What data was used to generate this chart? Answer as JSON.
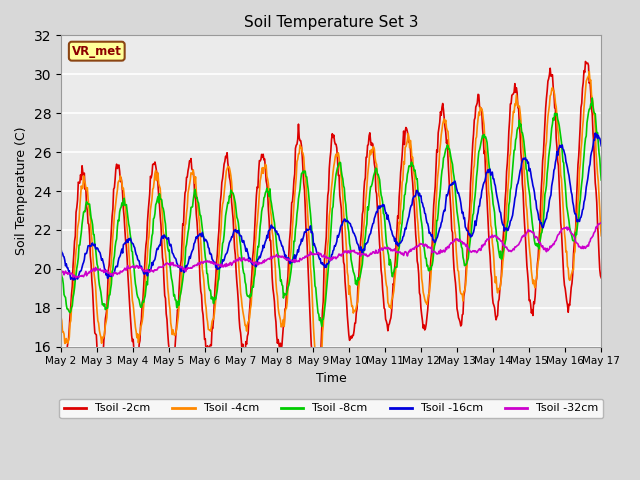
{
  "title": "Soil Temperature Set 3",
  "xlabel": "Time",
  "ylabel": "Soil Temperature (C)",
  "ylim": [
    16,
    32
  ],
  "yticks": [
    16,
    18,
    20,
    22,
    24,
    26,
    28,
    30,
    32
  ],
  "background_color": "#d8d8d8",
  "plot_bg_color": "#ebebeb",
  "grid_color": "#ffffff",
  "label_box_text": "VR_met",
  "label_box_facecolor": "#ffff99",
  "label_box_edgecolor": "#8b4513",
  "series": [
    {
      "label": "Tsoil -2cm",
      "color": "#dd0000",
      "lw": 1.2
    },
    {
      "label": "Tsoil -4cm",
      "color": "#ff8800",
      "lw": 1.2
    },
    {
      "label": "Tsoil -8cm",
      "color": "#00cc00",
      "lw": 1.2
    },
    {
      "label": "Tsoil -16cm",
      "color": "#0000dd",
      "lw": 1.2
    },
    {
      "label": "Tsoil -32cm",
      "color": "#cc00cc",
      "lw": 1.2
    }
  ],
  "n_days": 15,
  "start_day": 2,
  "points_per_day": 48
}
